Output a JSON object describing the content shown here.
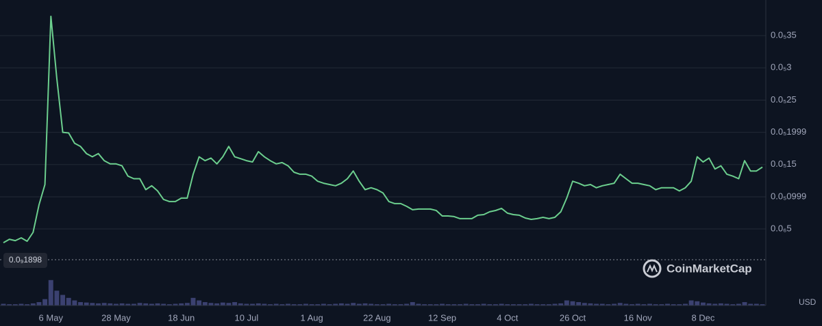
{
  "chart_data": {
    "type": "line",
    "categories": [
      null,
      null,
      null,
      null,
      null,
      null,
      null,
      null,
      "6 May",
      null,
      null,
      null,
      null,
      null,
      null,
      null,
      null,
      null,
      null,
      "28 May",
      null,
      null,
      null,
      null,
      null,
      null,
      null,
      null,
      null,
      null,
      "18 Jun",
      null,
      null,
      null,
      null,
      null,
      null,
      null,
      null,
      null,
      null,
      "10 Jul",
      null,
      null,
      null,
      null,
      null,
      null,
      null,
      null,
      null,
      null,
      "1 Aug",
      null,
      null,
      null,
      null,
      null,
      null,
      null,
      null,
      null,
      null,
      "22 Aug",
      null,
      null,
      null,
      null,
      null,
      null,
      null,
      null,
      null,
      null,
      "12 Sep",
      null,
      null,
      null,
      null,
      null,
      null,
      null,
      null,
      null,
      null,
      "4 Oct",
      null,
      null,
      null,
      null,
      null,
      null,
      null,
      null,
      null,
      null,
      "26 Oct",
      null,
      null,
      null,
      null,
      null,
      null,
      null,
      null,
      null,
      null,
      "16 Nov",
      null,
      null,
      null,
      null,
      null,
      null,
      null,
      null,
      null,
      null,
      "8 Dec",
      null,
      null,
      null,
      null,
      null,
      null,
      null,
      null,
      null,
      null
    ],
    "series": [
      {
        "name": "Price",
        "color": "#6ccf8e",
        "values": [
          2.87e-07,
          3.4e-07,
          3.19e-07,
          3.62e-07,
          3.09e-07,
          4.47e-07,
          8.72e-07,
          1.19e-06,
          3.8e-06,
          2.84e-06,
          2e-06,
          1.99e-06,
          1.83e-06,
          1.78e-06,
          1.67e-06,
          1.62e-06,
          1.67e-06,
          1.56e-06,
          1.51e-06,
          1.51e-06,
          1.48e-06,
          1.32e-06,
          1.28e-06,
          1.28e-06,
          1.11e-06,
          1.17e-06,
          1.09e-06,
          9.58e-07,
          9.26e-07,
          9.26e-07,
          9.79e-07,
          9.79e-07,
          1.35e-06,
          1.62e-06,
          1.56e-06,
          1.6e-06,
          1.51e-06,
          1.62e-06,
          1.78e-06,
          1.62e-06,
          1.59e-06,
          1.56e-06,
          1.54e-06,
          1.7e-06,
          1.62e-06,
          1.56e-06,
          1.51e-06,
          1.53e-06,
          1.48e-06,
          1.38e-06,
          1.35e-06,
          1.35e-06,
          1.32e-06,
          1.24e-06,
          1.21e-06,
          1.19e-06,
          1.17e-06,
          1.21e-06,
          1.28e-06,
          1.4e-06,
          1.24e-06,
          1.11e-06,
          1.14e-06,
          1.11e-06,
          1.06e-06,
          9.26e-07,
          8.94e-07,
          8.94e-07,
          8.51e-07,
          7.98e-07,
          8.09e-07,
          8.09e-07,
          8.09e-07,
          7.87e-07,
          7.02e-07,
          7.02e-07,
          6.92e-07,
          6.6e-07,
          6.6e-07,
          6.6e-07,
          7.13e-07,
          7.23e-07,
          7.66e-07,
          7.87e-07,
          8.19e-07,
          7.45e-07,
          7.23e-07,
          7.13e-07,
          6.7e-07,
          6.49e-07,
          6.6e-07,
          6.81e-07,
          6.6e-07,
          6.81e-07,
          7.66e-07,
          9.79e-07,
          1.24e-06,
          1.21e-06,
          1.17e-06,
          1.19e-06,
          1.14e-06,
          1.17e-06,
          1.19e-06,
          1.21e-06,
          1.35e-06,
          1.28e-06,
          1.21e-06,
          1.21e-06,
          1.19e-06,
          1.17e-06,
          1.11e-06,
          1.14e-06,
          1.14e-06,
          1.14e-06,
          1.09e-06,
          1.14e-06,
          1.24e-06,
          1.62e-06,
          1.54e-06,
          1.6e-06,
          1.43e-06,
          1.48e-06,
          1.35e-06,
          1.32e-06,
          1.28e-06,
          1.56e-06,
          1.4e-06,
          1.4e-06,
          1.46e-06
        ]
      },
      {
        "name": "Volume",
        "color": "#3b4170",
        "axis": "y2",
        "values": [
          4,
          3,
          3,
          4,
          3,
          5,
          8,
          15,
          60,
          35,
          25,
          18,
          12,
          8,
          7,
          6,
          5,
          6,
          5,
          4,
          5,
          4,
          4,
          6,
          5,
          4,
          5,
          4,
          3,
          4,
          5,
          6,
          18,
          12,
          8,
          6,
          5,
          7,
          6,
          8,
          5,
          4,
          4,
          5,
          4,
          3,
          4,
          3,
          4,
          3,
          3,
          4,
          3,
          3,
          4,
          3,
          4,
          5,
          4,
          6,
          4,
          5,
          4,
          3,
          3,
          4,
          3,
          3,
          4,
          8,
          4,
          3,
          3,
          3,
          4,
          3,
          3,
          3,
          4,
          3,
          3,
          4,
          3,
          3,
          4,
          3,
          3,
          3,
          3,
          4,
          3,
          3,
          3,
          4,
          5,
          12,
          10,
          8,
          6,
          5,
          4,
          4,
          3,
          4,
          6,
          4,
          3,
          4,
          3,
          4,
          3,
          3,
          4,
          3,
          3,
          4,
          12,
          10,
          7,
          5,
          4,
          5,
          4,
          3,
          4,
          8,
          4,
          4,
          3
        ]
      }
    ],
    "ylim": [
      2.3e-08,
      4e-06
    ],
    "yticks": [
      {
        "value": 5e-07,
        "label": "0.0₆5"
      },
      {
        "value": 9.99e-07,
        "label": "0.0₅0999"
      },
      {
        "value": 1.5e-06,
        "label": "0.0₅15"
      },
      {
        "value": 1.999e-06,
        "label": "0.0₅1999"
      },
      {
        "value": 2.5e-06,
        "label": "0.0₅25"
      },
      {
        "value": 3e-06,
        "label": "0.0₅3"
      },
      {
        "value": 3.5e-06,
        "label": "0.0₅35"
      }
    ],
    "y2lim": [
      0,
      100
    ],
    "grid": true,
    "annotation": "0.0₉1898",
    "currency": "USD",
    "watermark": "CoinMarketCap"
  }
}
